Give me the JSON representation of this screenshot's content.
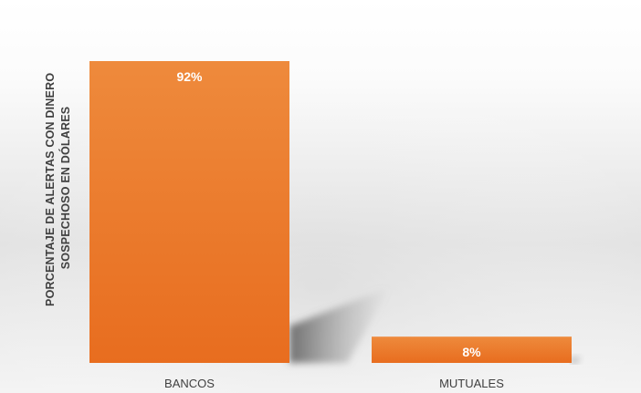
{
  "chart_data": {
    "type": "bar",
    "title": "",
    "xlabel": "",
    "ylabel_lines": [
      "PORCENTAJE DE ALERTAS CON DINERO",
      "SOSPECHOSO EN DÓLARES"
    ],
    "categories": [
      "BANCOS",
      "MUTUALES"
    ],
    "values": [
      92,
      8
    ],
    "data_labels": [
      "92%",
      "8%"
    ],
    "ylim": [
      0,
      92
    ],
    "grid": false,
    "legend": "none",
    "bar_color": "#E86D1F",
    "bar_color_light": "#EE8A3C"
  }
}
